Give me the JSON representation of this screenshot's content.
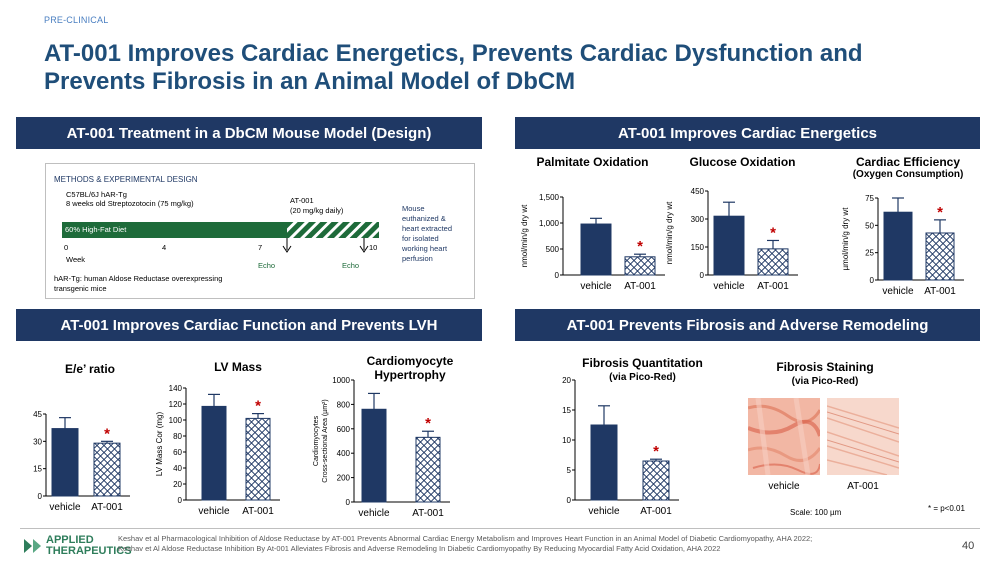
{
  "header": {
    "tag": "PRE-CLINICAL",
    "title": "AT-001 Improves Cardiac Energetics, Prevents Cardiac Dysfunction and Prevents Fibrosis in an Animal Model of DbCM"
  },
  "panels": {
    "design": "AT-001 Treatment in a DbCM Mouse Model (Design)",
    "energetics": "AT-001 Improves Cardiac Energetics",
    "function": "AT-001 Improves Cardiac Function and Prevents LVH",
    "fibrosis": "AT-001 Prevents Fibrosis and Adverse Remodeling"
  },
  "design": {
    "heading": "METHODS & EXPERIMENTAL DESIGN",
    "strain": "C57BL/6J hAR-Tg",
    "induction": "8 weeks old Streptozotocin (75 mg/kg)",
    "diet": "60% High-Fat Diet",
    "treatment_label": "AT-001",
    "treatment_dose": "(20 mg/kg daily)",
    "ticks": [
      "0",
      "4",
      "7",
      "10"
    ],
    "week_label": "Week",
    "echo": "Echo",
    "endpoint": [
      "Mouse",
      "euthanized &",
      "heart extracted",
      "for isolated",
      "working heart",
      "perfusion"
    ],
    "footnote": [
      "hAR-Tg: human Aldose Reductase overexpressing",
      "transgenic mice"
    ]
  },
  "colors": {
    "navy": "#1f3864",
    "vehicle": "#1f3864",
    "at001": "#1f3864",
    "star": "#c00000"
  },
  "chart_data": [
    {
      "id": "palmitate",
      "type": "bar",
      "title": "Palmitate Oxidation",
      "ylabel": "nmol/min/g dry wt",
      "categories": [
        "vehicle",
        "AT-001"
      ],
      "values": [
        980,
        350
      ],
      "errors": [
        110,
        50
      ],
      "ylim": [
        0,
        1500
      ],
      "ticks": [
        0,
        500,
        1000,
        1500
      ],
      "tick_labels": [
        "0",
        "500",
        "1,000",
        "1,500"
      ],
      "significant": [
        false,
        true
      ]
    },
    {
      "id": "glucose",
      "type": "bar",
      "title": "Glucose Oxidation",
      "ylabel": "nmol/min/g dry wt",
      "categories": [
        "vehicle",
        "AT-001"
      ],
      "values": [
        315,
        140
      ],
      "errors": [
        75,
        45
      ],
      "ylim": [
        0,
        450
      ],
      "ticks": [
        0,
        150,
        300,
        450
      ],
      "tick_labels": [
        "0",
        "150",
        "300",
        "450"
      ],
      "significant": [
        false,
        true
      ]
    },
    {
      "id": "efficiency",
      "type": "bar",
      "title": "Cardiac Efficiency",
      "subtitle": "(Oxygen Consumption)",
      "ylabel": "µmol/min/g dry wt",
      "categories": [
        "vehicle",
        "AT-001"
      ],
      "values": [
        62,
        43
      ],
      "errors": [
        13,
        12
      ],
      "ylim": [
        0,
        75
      ],
      "ticks": [
        0,
        25,
        50,
        75
      ],
      "tick_labels": [
        "0",
        "25",
        "50",
        "75"
      ],
      "significant": [
        false,
        true
      ]
    },
    {
      "id": "ee",
      "type": "bar",
      "title": "E/e’ ratio",
      "ylabel": "",
      "categories": [
        "vehicle",
        "AT-001"
      ],
      "values": [
        37,
        29
      ],
      "errors": [
        6,
        1
      ],
      "ylim": [
        0,
        45
      ],
      "ticks": [
        0,
        15,
        30,
        45
      ],
      "tick_labels": [
        "0",
        "15",
        "30",
        "45"
      ],
      "significant": [
        false,
        true
      ]
    },
    {
      "id": "lvmass",
      "type": "bar",
      "title": "LV Mass",
      "ylabel": "LV Mass Cor (mg)",
      "categories": [
        "vehicle",
        "AT-001"
      ],
      "values": [
        117,
        102
      ],
      "errors": [
        15,
        6
      ],
      "ylim": [
        0,
        140
      ],
      "ticks": [
        0,
        20,
        40,
        60,
        80,
        100,
        120,
        140
      ],
      "tick_labels": [
        "0",
        "20",
        "40",
        "60",
        "80",
        "100",
        "120",
        "140"
      ],
      "significant": [
        false,
        true
      ]
    },
    {
      "id": "cardio",
      "type": "bar",
      "title": "Cardiomyocyte",
      "subtitle": "Hypertrophy",
      "ylabel": "Cardiomyocytes Cross-sectional Area (µm²)",
      "ylabel_lines": [
        "Cardiomyocytes",
        "Cross-sectional Area (µm²)"
      ],
      "categories": [
        "vehicle",
        "AT-001"
      ],
      "values": [
        760,
        530
      ],
      "errors": [
        130,
        50
      ],
      "ylim": [
        0,
        1000
      ],
      "ticks": [
        0,
        200,
        400,
        600,
        800,
        1000
      ],
      "tick_labels": [
        "0",
        "200",
        "400",
        "600",
        "800",
        "1000"
      ],
      "significant": [
        false,
        true
      ]
    },
    {
      "id": "fibrosis",
      "type": "bar",
      "title": "Fibrosis  Quantitation",
      "subtitle": "(via Pico-Red)",
      "ylabel": "",
      "categories": [
        "vehicle",
        "AT-001"
      ],
      "values": [
        12.5,
        6.5
      ],
      "errors": [
        3.2,
        0.3
      ],
      "ylim": [
        0,
        20
      ],
      "ticks": [
        0,
        5,
        10,
        15,
        20
      ],
      "tick_labels": [
        "0",
        "5",
        "10",
        "15",
        "20"
      ],
      "significant": [
        false,
        true
      ]
    }
  ],
  "staining": {
    "title": "Fibrosis Staining",
    "subtitle": "(via Pico-Red)",
    "labels": [
      "vehicle",
      "AT-001"
    ],
    "scale": "Scale: 100 µm",
    "significance": "* = p<0.01"
  },
  "footer": {
    "logo_line1": "APPLIED",
    "logo_line2": "THERAPEUTICS",
    "ref1": "Keshav et al Pharmacological Inhibition of Aldose Reductase by AT-001 Prevents Abnormal Cardiac Energy Metabolism and Improves Heart Function in an Animal Model of Diabetic Cardiomyopathy, AHA 2022;",
    "ref2": "Keshav et Al Aldose Reductase Inhibition By At-001 Alleviates Fibrosis and Adverse Remodeling In Diabetic Cardiomyopathy By Reducing Myocardial Fatty Acid Oxidation, AHA 2022",
    "page": "40"
  }
}
